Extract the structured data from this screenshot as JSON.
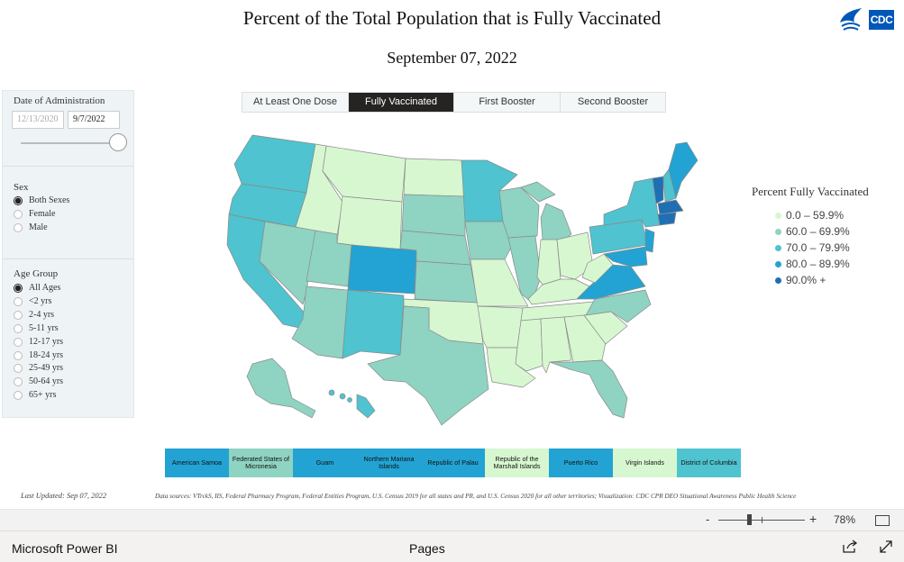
{
  "title": "Percent of the Total Population that is Fully Vaccinated",
  "subtitle": "September 07, 2022",
  "logo": {
    "text": "CDC",
    "icon": "hhs-eagle-icon"
  },
  "filters": {
    "date": {
      "label": "Date of Administration",
      "start": "12/13/2020",
      "end": "9/7/2022",
      "slider_position": 1.0
    },
    "sex": {
      "label": "Sex",
      "options": [
        "Both Sexes",
        "Female",
        "Male"
      ],
      "selected": "Both Sexes"
    },
    "age": {
      "label": "Age Group",
      "options": [
        "All Ages",
        "<2 yrs",
        "2-4 yrs",
        "5-11 yrs",
        "12-17 yrs",
        "18-24 yrs",
        "25-49 yrs",
        "50-64 yrs",
        "65+ yrs"
      ],
      "selected": "All Ages"
    }
  },
  "tabs": [
    {
      "label": "At Least One Dose",
      "active": false
    },
    {
      "label": "Fully Vaccinated",
      "active": true
    },
    {
      "label": "First Booster",
      "active": false
    },
    {
      "label": "Second Booster",
      "active": false
    }
  ],
  "legend": {
    "title": "Percent Fully Vaccinated",
    "items": [
      {
        "label": "0.0 – 59.9%",
        "color": "#d7f7d0"
      },
      {
        "label": "60.0 – 69.9%",
        "color": "#8fd3c2"
      },
      {
        "label": "70.0 – 79.9%",
        "color": "#4fc3cf"
      },
      {
        "label": "80.0 – 89.9%",
        "color": "#22a3d3"
      },
      {
        "label": "90.0% +",
        "color": "#1f6fb4"
      }
    ]
  },
  "territories": [
    {
      "label": "American Samoa",
      "color": "#22a3d3"
    },
    {
      "label": "Federated States of Micronesia",
      "color": "#8fd3c2"
    },
    {
      "label": "Guam",
      "color": "#22a3d3"
    },
    {
      "label": "Northern Mariana Islands",
      "color": "#22a3d3"
    },
    {
      "label": "Republic of Palau",
      "color": "#22a3d3"
    },
    {
      "label": "Republic of the Marshall Islands",
      "color": "#d7f7d0"
    },
    {
      "label": "Puerto Rico",
      "color": "#22a3d3"
    },
    {
      "label": "Virgin Islands",
      "color": "#d7f7d0"
    },
    {
      "label": "District of Columbia",
      "color": "#4fc3cf"
    }
  ],
  "last_updated": "Last Updated: Sep 07, 2022",
  "sources": "Data sources: VTrckS, IIS, Federal Pharmacy Program, Federal Entities Program, U.S. Census 2019 for all states and PR, and U.S. Census 2020 for all other territories; Visualization: CDC CPR DEO Situational Awareness Public Health Science",
  "zoom": {
    "minus": "-",
    "plus": "+",
    "percent": "78%",
    "value": 0.35
  },
  "footer": {
    "brand": "Microsoft Power BI",
    "pages": "Pages",
    "share_icon": "share-icon",
    "expand_icon": "expand-icon"
  }
}
